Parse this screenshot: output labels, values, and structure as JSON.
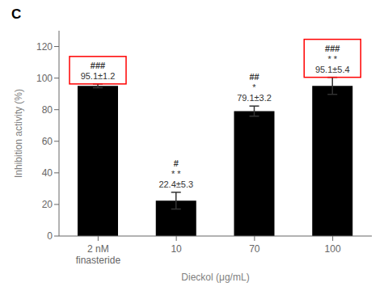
{
  "chart_data": {
    "type": "bar",
    "title": "C",
    "categories": [
      "2 nM\nfinasteride",
      "10",
      "70",
      "100"
    ],
    "values": [
      95.1,
      22.4,
      79.1,
      95.1
    ],
    "errors": [
      1.2,
      5.3,
      3.2,
      5.4
    ],
    "xlabel": "Dieckol (μg/mL)",
    "ylabel": "Inhibition activity (%)",
    "ylim": [
      0,
      130
    ],
    "yticks": [
      0,
      20,
      40,
      60,
      80,
      100,
      120
    ],
    "grid": false,
    "annotations": [
      {
        "x": "2 nM\nfinasteride",
        "text": [
          "###",
          "95.1±1.2"
        ],
        "color": "#ff0000"
      },
      {
        "x": "10",
        "text": [
          "#",
          "* *",
          "22.4±5.3"
        ]
      },
      {
        "x": "70",
        "text": [
          "##",
          "*",
          "79.1±3.2"
        ]
      },
      {
        "x": "100",
        "text": [
          "###",
          "* *",
          "95.1±5.4"
        ],
        "color": "#ff0000"
      }
    ]
  }
}
